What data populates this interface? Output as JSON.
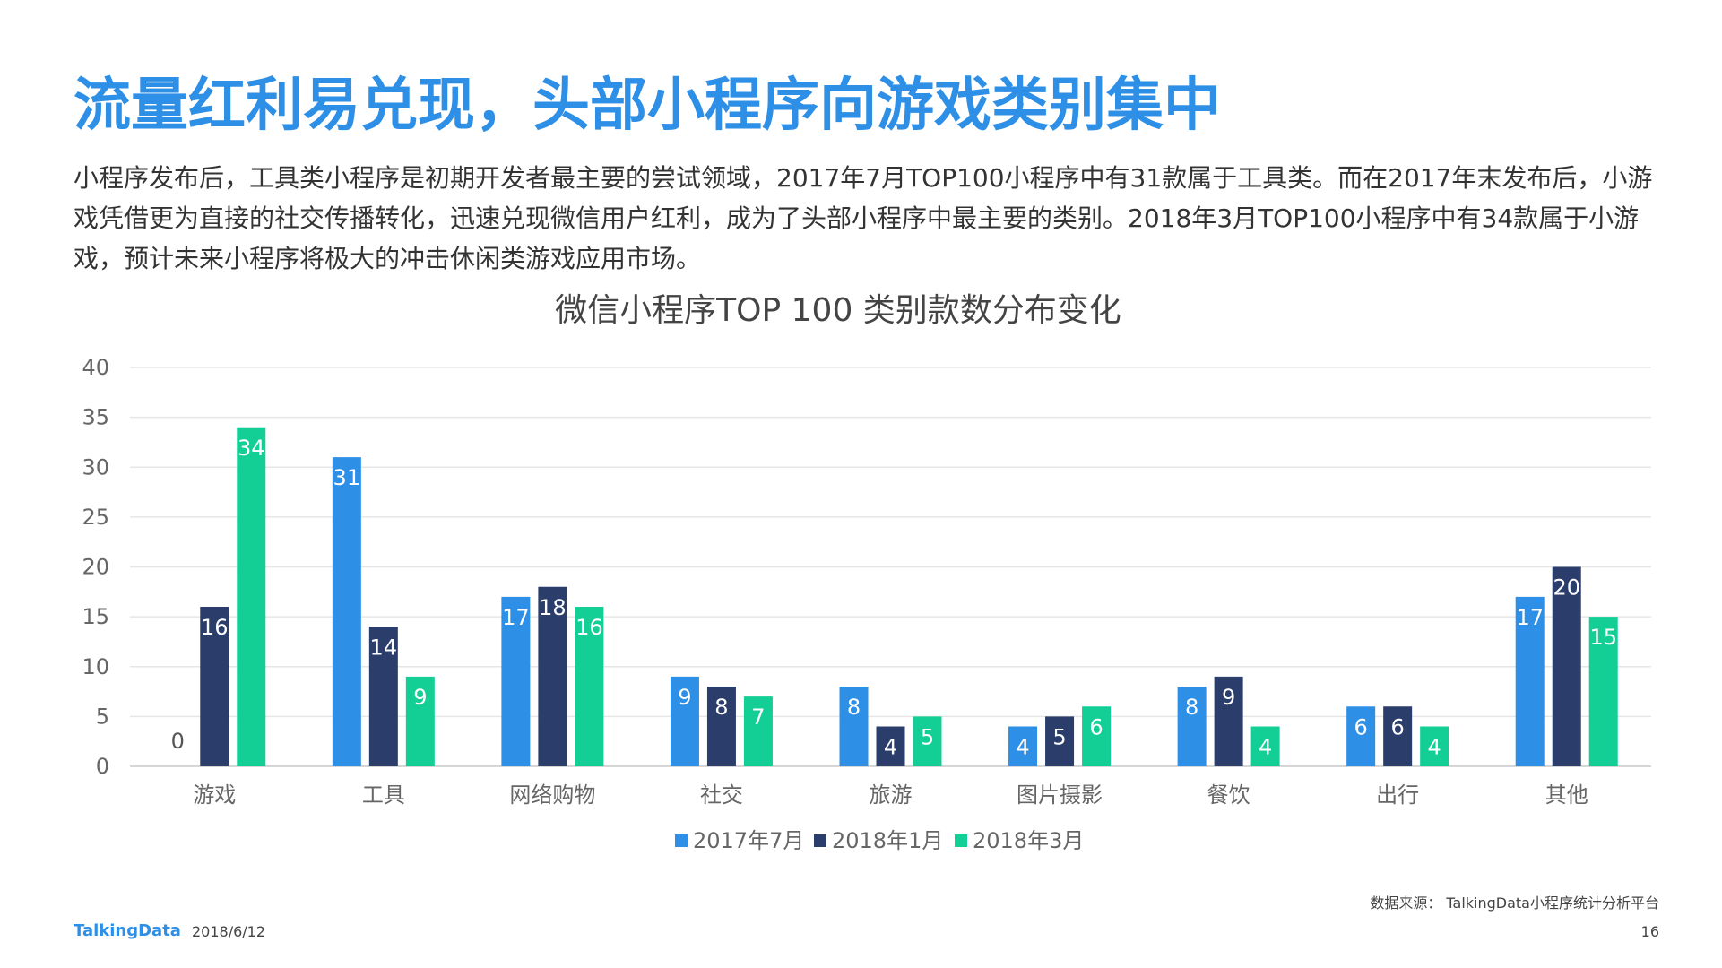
{
  "page": {
    "title": "流量红利易兑现，头部小程序向游戏类别集中",
    "intro": "小程序发布后，工具类小程序是初期开发者最主要的尝试领域，2017年7月TOP100小程序中有31款属于工具类。而在2017年末发布后，小游戏凭借更为直接的社交传播转化，迅速兑现微信用户红利，成为了头部小程序中最主要的类别。2018年3月TOP100小程序中有34款属于小游戏，预计未来小程序将极大的冲击休闲类游戏应用市场。",
    "source": "数据来源：  TalkingData小程序统计分析平台",
    "logo": "TalkingData",
    "date": "2018/6/12",
    "page_number": "16"
  },
  "chart_data": {
    "type": "bar",
    "title": "微信小程序TOP 100 类别款数分布变化",
    "xlabel": "",
    "ylabel": "",
    "ylim": [
      0,
      40
    ],
    "yticks": [
      0,
      5,
      10,
      15,
      20,
      25,
      30,
      35,
      40
    ],
    "grid": true,
    "legend_position": "bottom",
    "data_labels": true,
    "categories": [
      "游戏",
      "工具",
      "网络购物",
      "社交",
      "旅游",
      "图片摄影",
      "餐饮",
      "出行",
      "其他"
    ],
    "series": [
      {
        "name": "2017年7月",
        "color": "#2e8fe6",
        "values": [
          0,
          31,
          17,
          9,
          8,
          4,
          8,
          6,
          17
        ]
      },
      {
        "name": "2018年1月",
        "color": "#2b3d6b",
        "values": [
          16,
          14,
          18,
          8,
          4,
          5,
          9,
          6,
          20
        ]
      },
      {
        "name": "2018年3月",
        "color": "#13cf95",
        "values": [
          34,
          9,
          16,
          7,
          5,
          6,
          4,
          4,
          15
        ]
      }
    ]
  }
}
